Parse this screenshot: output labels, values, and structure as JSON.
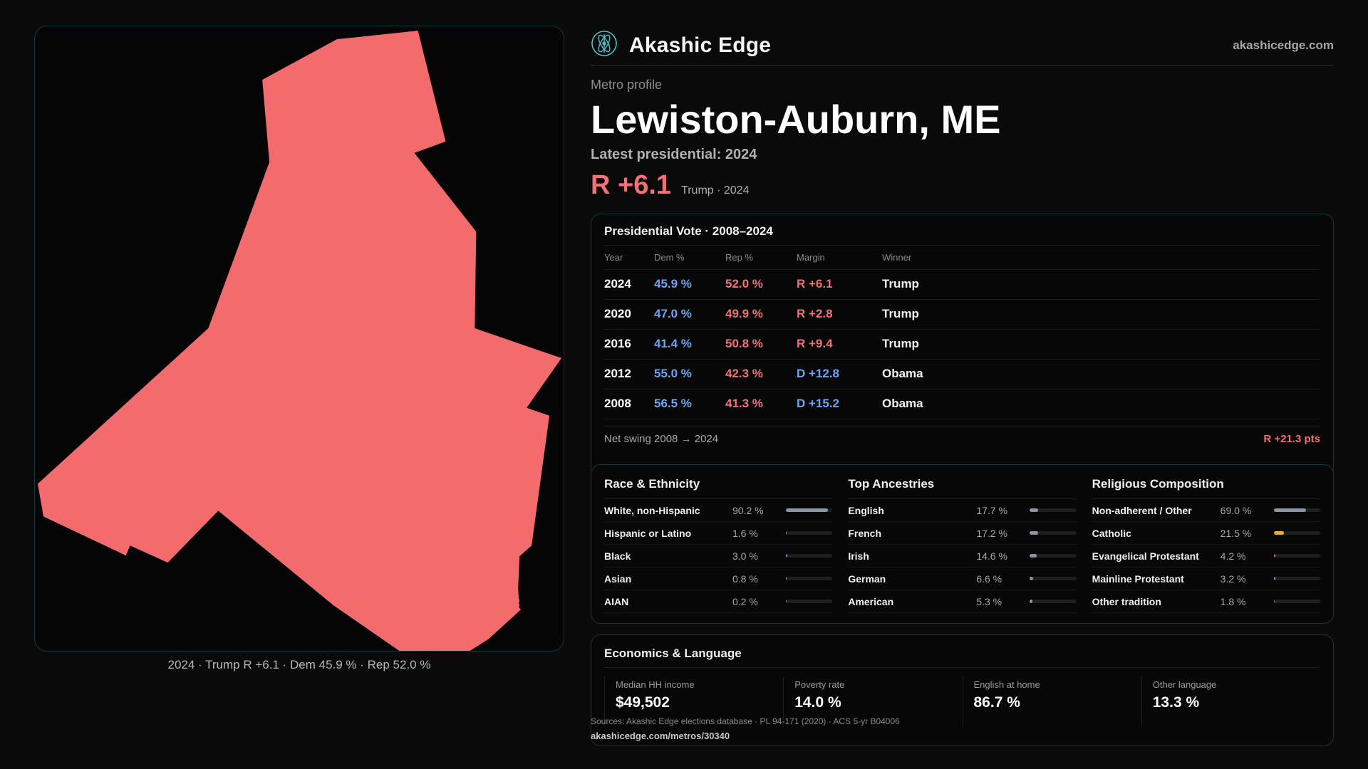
{
  "brand": {
    "name": "Akashic Edge",
    "url": "akashicedge.com",
    "logo_icon": "atom-logo-icon",
    "accent": "#4cc3c8"
  },
  "profile": {
    "kicker": "Metro profile",
    "title": "Lewiston-Auburn, ME",
    "latest_label": "Latest presidential: 2024",
    "margin": "R +6.1",
    "margin_detail": "Trump · 2024"
  },
  "map": {
    "caption": "2024 · Trump R +6.1 · Dem 45.9 % · Rep 52.0 %",
    "fill_color": "#f46b6e"
  },
  "vote": {
    "title": "Presidential Vote · 2008–2024",
    "headers": {
      "year": "Year",
      "dem": "Dem %",
      "rep": "Rep %",
      "margin": "Margin",
      "winner": "Winner"
    },
    "rows": [
      {
        "year": "2024",
        "dem": "45.9 %",
        "rep": "52.0 %",
        "margin": "R +6.1",
        "party": "R",
        "winner": "Trump"
      },
      {
        "year": "2020",
        "dem": "47.0 %",
        "rep": "49.9 %",
        "margin": "R +2.8",
        "party": "R",
        "winner": "Trump"
      },
      {
        "year": "2016",
        "dem": "41.4 %",
        "rep": "50.8 %",
        "margin": "R +9.4",
        "party": "R",
        "winner": "Trump"
      },
      {
        "year": "2012",
        "dem": "55.0 %",
        "rep": "42.3 %",
        "margin": "D +12.8",
        "party": "D",
        "winner": "Obama"
      },
      {
        "year": "2008",
        "dem": "56.5 %",
        "rep": "41.3 %",
        "margin": "D +15.2",
        "party": "D",
        "winner": "Obama"
      }
    ],
    "swing_label": "Net swing 2008 → 2024",
    "swing_value": "R +21.3 pts"
  },
  "demographics": {
    "race": {
      "title": "Race & Ethnicity",
      "rows": [
        {
          "label": "White, non-Hispanic",
          "value": "90.2 %",
          "pct": 90.2,
          "color": "#8c95a6"
        },
        {
          "label": "Hispanic or Latino",
          "value": "1.6 %",
          "pct": 1.6,
          "color": "#e8913a"
        },
        {
          "label": "Black",
          "value": "3.0 %",
          "pct": 3.0,
          "color": "#7a8cf0"
        },
        {
          "label": "Asian",
          "value": "0.8 %",
          "pct": 0.8,
          "color": "#5fb8c6"
        },
        {
          "label": "AIAN",
          "value": "0.2 %",
          "pct": 0.2,
          "color": "#e07a55"
        }
      ]
    },
    "ancestry": {
      "title": "Top Ancestries",
      "rows": [
        {
          "label": "English",
          "value": "17.7 %",
          "pct": 17.7,
          "color": "#8c95a6"
        },
        {
          "label": "French",
          "value": "17.2 %",
          "pct": 17.2,
          "color": "#8c95a6"
        },
        {
          "label": "Irish",
          "value": "14.6 %",
          "pct": 14.6,
          "color": "#8c95a6"
        },
        {
          "label": "German",
          "value": "6.6 %",
          "pct": 6.6,
          "color": "#8c95a6"
        },
        {
          "label": "American",
          "value": "5.3 %",
          "pct": 5.3,
          "color": "#8c95a6"
        }
      ]
    },
    "religion": {
      "title": "Religious Composition",
      "rows": [
        {
          "label": "Non-adherent / Other",
          "value": "69.0 %",
          "pct": 69.0,
          "color": "#8c95a6"
        },
        {
          "label": "Catholic",
          "value": "21.5 %",
          "pct": 21.5,
          "color": "#e8b32a"
        },
        {
          "label": "Evangelical Protestant",
          "value": "4.2 %",
          "pct": 4.2,
          "color": "#f46b6e"
        },
        {
          "label": "Mainline Protestant",
          "value": "3.2 %",
          "pct": 3.2,
          "color": "#6aa6f8"
        },
        {
          "label": "Other tradition",
          "value": "1.8 %",
          "pct": 1.8,
          "color": "#8c95a6"
        }
      ]
    }
  },
  "economics": {
    "title": "Economics & Language",
    "cells": [
      {
        "label": "Median HH income",
        "value": "$49,502"
      },
      {
        "label": "Poverty rate",
        "value": "14.0 %"
      },
      {
        "label": "English at home",
        "value": "86.7 %"
      },
      {
        "label": "Other language",
        "value": "13.3 %"
      }
    ]
  },
  "footer": {
    "sources": "Sources: Akashic Edge elections database · PL 94-171 (2020) · ACS 5-yr B04006",
    "url": "akashicedge.com/metros/30340"
  }
}
